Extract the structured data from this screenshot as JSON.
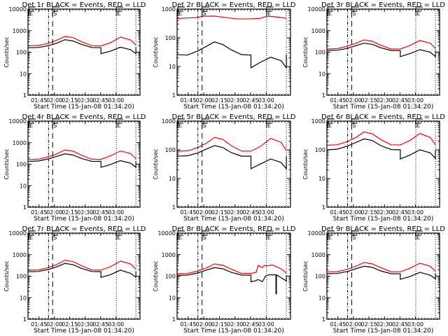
{
  "chart_data": [
    {
      "type": "line",
      "title": "Det 1r BLACK = Events, RED = LLD",
      "xlabel": "Start Time (15-Jan-08 01:34:20)",
      "ylabel": "Counts/sec",
      "yscale": "log",
      "ylim": [
        1,
        10000
      ],
      "yticks": [
        "1",
        "10",
        "100",
        "1000",
        "10000"
      ],
      "xlim_minutes_from_start": [
        0,
        109
      ],
      "xticks": [
        "01:45",
        "02:00",
        "02:15",
        "02:30",
        "02:45",
        "03:00"
      ],
      "markers": [
        {
          "label": "E",
          "t": 0
        },
        {
          "label": "S",
          "t": 24
        },
        {
          "label": "E",
          "t": 86
        }
      ],
      "vlines": {
        "dashdot": 20,
        "dashed": 24,
        "dotted": [
          86,
          105
        ]
      },
      "series": [
        {
          "name": "Events",
          "color": "#000000",
          "x": [
            0,
            10,
            20,
            28,
            36,
            44,
            52,
            62,
            71,
            71,
            80,
            90,
            100,
            105,
            105
          ],
          "y": [
            160,
            165,
            200,
            260,
            380,
            330,
            230,
            165,
            160,
            85,
            110,
            170,
            130,
            85,
            160
          ]
        },
        {
          "name": "LLD",
          "color": "#ff0000",
          "x": [
            0,
            10,
            20,
            28,
            36,
            44,
            52,
            62,
            71,
            80,
            90,
            100,
            105
          ],
          "y": [
            200,
            205,
            260,
            360,
            540,
            470,
            310,
            200,
            195,
            270,
            500,
            370,
            210
          ]
        }
      ]
    },
    {
      "type": "line",
      "title": "Det 2r BLACK = Events, RED = LLD",
      "xlabel": "Start Time (15-Jan-08 01:34:20)",
      "ylabel": "Counts/sec",
      "yscale": "log",
      "ylim": [
        1,
        1000
      ],
      "yticks": [
        "1",
        "10",
        "100",
        "1000"
      ],
      "xlim_minutes_from_start": [
        0,
        109
      ],
      "xticks": [
        "01:45",
        "02:00",
        "02:15",
        "02:30",
        "02:45",
        "03:00"
      ],
      "markers": [
        {
          "label": "E",
          "t": 0
        },
        {
          "label": "S",
          "t": 24
        },
        {
          "label": "E",
          "t": 86
        }
      ],
      "vlines": {
        "dashdot": 20,
        "dashed": 24,
        "dotted": [
          86,
          105
        ]
      },
      "series": [
        {
          "name": "Events",
          "color": "#000000",
          "x": [
            0,
            10,
            20,
            28,
            36,
            44,
            52,
            62,
            71,
            71,
            80,
            90,
            100,
            105,
            105
          ],
          "y": [
            26,
            25,
            35,
            50,
            72,
            58,
            38,
            26,
            25,
            9,
            14,
            21,
            16,
            9,
            26
          ]
        },
        {
          "name": "LLD",
          "color": "#ff0000",
          "x": [
            0,
            10,
            20,
            24,
            36,
            48,
            60,
            72,
            80,
            86,
            95,
            105
          ],
          "y": [
            470,
            490,
            510,
            560,
            570,
            500,
            450,
            460,
            480,
            560,
            540,
            480
          ]
        }
      ]
    },
    {
      "type": "line",
      "title": "Det 3r BLACK = Events, RED = LLD",
      "xlabel": "Start Time (15-Jan-08 01:34:20)",
      "ylabel": "Counts/sec",
      "yscale": "log",
      "ylim": [
        1,
        10000
      ],
      "yticks": [
        "1",
        "10",
        "100",
        "1000",
        "10000"
      ],
      "xlim_minutes_from_start": [
        0,
        109
      ],
      "xticks": [
        "01:45",
        "02:00",
        "02:15",
        "02:30",
        "02:45",
        "03:00"
      ],
      "markers": [
        {
          "label": "E",
          "t": 0
        },
        {
          "label": "S",
          "t": 24
        },
        {
          "label": "E",
          "t": 86
        }
      ],
      "vlines": {
        "dashdot": 20,
        "dashed": 24,
        "dotted": [
          86,
          105
        ]
      },
      "series": [
        {
          "name": "Events",
          "color": "#000000",
          "x": [
            0,
            10,
            20,
            28,
            36,
            44,
            52,
            62,
            71,
            71,
            80,
            90,
            100,
            105,
            105
          ],
          "y": [
            120,
            122,
            150,
            200,
            260,
            230,
            160,
            120,
            118,
            62,
            85,
            130,
            100,
            62,
            120
          ]
        },
        {
          "name": "LLD",
          "color": "#ff0000",
          "x": [
            0,
            10,
            20,
            28,
            36,
            44,
            52,
            62,
            71,
            80,
            90,
            100,
            105
          ],
          "y": [
            140,
            145,
            190,
            260,
            370,
            320,
            210,
            140,
            140,
            200,
            350,
            260,
            145
          ]
        }
      ]
    },
    {
      "type": "line",
      "title": "Det 4r BLACK = Events, RED = LLD",
      "xlabel": "Start Time (15-Jan-08 01:34:20)",
      "ylabel": "Counts/sec",
      "yscale": "log",
      "ylim": [
        1,
        10000
      ],
      "yticks": [
        "1",
        "10",
        "100",
        "1000",
        "10000"
      ],
      "xlim_minutes_from_start": [
        0,
        109
      ],
      "xticks": [
        "01:45",
        "02:00",
        "02:15",
        "02:30",
        "02:45",
        "03:00"
      ],
      "markers": [
        {
          "label": "E",
          "t": 0
        },
        {
          "label": "S",
          "t": 24
        },
        {
          "label": "E",
          "t": 86
        }
      ],
      "vlines": {
        "dashdot": 20,
        "dashed": 24,
        "dotted": [
          86,
          105
        ]
      },
      "series": [
        {
          "name": "Events",
          "color": "#000000",
          "x": [
            0,
            10,
            20,
            28,
            36,
            44,
            52,
            62,
            71,
            71,
            80,
            90,
            100,
            105,
            105
          ],
          "y": [
            135,
            140,
            175,
            230,
            300,
            265,
            185,
            135,
            135,
            72,
            95,
            145,
            110,
            72,
            135
          ]
        },
        {
          "name": "LLD",
          "color": "#ff0000",
          "x": [
            0,
            10,
            20,
            28,
            36,
            44,
            52,
            62,
            71,
            80,
            90,
            100,
            105
          ],
          "y": [
            165,
            170,
            220,
            300,
            460,
            400,
            260,
            170,
            168,
            240,
            410,
            310,
            175
          ]
        }
      ]
    },
    {
      "type": "line",
      "title": "Det 5r BLACK = Events, RED = LLD",
      "xlabel": "Start Time (15-Jan-08 01:34:20)",
      "ylabel": "Counts/sec",
      "yscale": "log",
      "ylim": [
        1,
        1000
      ],
      "yticks": [
        "1",
        "10",
        "100",
        "1000"
      ],
      "xlim_minutes_from_start": [
        0,
        109
      ],
      "xticks": [
        "01:45",
        "02:00",
        "02:15",
        "02:30",
        "02:45",
        "03:00"
      ],
      "markers": [
        {
          "label": "E",
          "t": 0
        },
        {
          "label": "S",
          "t": 24
        },
        {
          "label": "E",
          "t": 86
        }
      ],
      "vlines": {
        "dashdot": 20,
        "dashed": 24,
        "dotted": [
          86,
          105
        ]
      },
      "series": [
        {
          "name": "Events",
          "color": "#000000",
          "x": [
            0,
            10,
            20,
            28,
            36,
            44,
            52,
            62,
            71,
            71,
            80,
            90,
            100,
            105,
            105
          ],
          "y": [
            60,
            62,
            78,
            105,
            140,
            120,
            80,
            60,
            60,
            22,
            32,
            48,
            36,
            22,
            60
          ]
        },
        {
          "name": "LLD",
          "color": "#ff0000",
          "x": [
            0,
            10,
            20,
            28,
            36,
            44,
            52,
            62,
            71,
            80,
            90,
            100,
            105
          ],
          "y": [
            90,
            92,
            120,
            170,
            270,
            230,
            140,
            90,
            90,
            130,
            250,
            180,
            95
          ]
        }
      ]
    },
    {
      "type": "line",
      "title": "Det 6r BLACK = Events, RED = LLD",
      "xlabel": "Start Time (15-Jan-08 01:34:20)",
      "ylabel": "Counts/sec",
      "yscale": "log",
      "ylim": [
        1,
        1000
      ],
      "yticks": [
        "1",
        "10",
        "100",
        "1000"
      ],
      "xlim_minutes_from_start": [
        0,
        109
      ],
      "xticks": [
        "01:45",
        "02:00",
        "02:15",
        "02:30",
        "02:45",
        "03:00"
      ],
      "markers": [
        {
          "label": "E",
          "t": 0
        },
        {
          "label": "S",
          "t": 24
        },
        {
          "label": "E",
          "t": 86
        }
      ],
      "vlines": {
        "dashdot": 20,
        "dashed": 24,
        "dotted": [
          86,
          105
        ]
      },
      "series": [
        {
          "name": "Events",
          "color": "#000000",
          "x": [
            0,
            10,
            20,
            28,
            36,
            44,
            52,
            62,
            71,
            71,
            80,
            90,
            100,
            105,
            105
          ],
          "y": [
            100,
            105,
            135,
            180,
            240,
            210,
            140,
            102,
            100,
            48,
            65,
            100,
            78,
            50,
            100
          ]
        },
        {
          "name": "LLD",
          "color": "#ff0000",
          "x": [
            0,
            10,
            20,
            28,
            36,
            44,
            52,
            62,
            71,
            80,
            90,
            100,
            105
          ],
          "y": [
            145,
            150,
            195,
            270,
            420,
            360,
            230,
            150,
            148,
            210,
            370,
            270,
            150
          ]
        }
      ]
    },
    {
      "type": "line",
      "title": "Det 7r BLACK = Events, RED = LLD",
      "xlabel": "Start Time (15-Jan-08 01:34:20)",
      "ylabel": "Counts/sec",
      "yscale": "log",
      "ylim": [
        1,
        10000
      ],
      "yticks": [
        "1",
        "10",
        "100",
        "1000",
        "10000"
      ],
      "xlim_minutes_from_start": [
        0,
        109
      ],
      "xticks": [
        "01:45",
        "02:00",
        "02:15",
        "02:30",
        "02:45",
        "03:00"
      ],
      "markers": [
        {
          "label": "E",
          "t": 0
        },
        {
          "label": "S",
          "t": 24
        },
        {
          "label": "E",
          "t": 86
        }
      ],
      "vlines": {
        "dashdot": 20,
        "dashed": 24,
        "dotted": [
          86,
          105
        ]
      },
      "series": [
        {
          "name": "Events",
          "color": "#000000",
          "x": [
            0,
            10,
            20,
            28,
            36,
            44,
            52,
            62,
            71,
            71,
            80,
            90,
            100,
            105,
            105
          ],
          "y": [
            160,
            165,
            205,
            270,
            390,
            340,
            230,
            165,
            162,
            88,
            115,
            190,
            135,
            88,
            160
          ]
        },
        {
          "name": "LLD",
          "color": "#ff0000",
          "x": [
            0,
            10,
            20,
            28,
            36,
            44,
            52,
            62,
            71,
            80,
            90,
            100,
            105
          ],
          "y": [
            190,
            195,
            250,
            350,
            550,
            470,
            310,
            195,
            192,
            270,
            500,
            370,
            205
          ]
        }
      ]
    },
    {
      "type": "line",
      "title": "Det 8r BLACK = Events, RED = LLD",
      "xlabel": "Start Time (15-Jan-08 01:34:20)",
      "ylabel": "Counts/sec",
      "yscale": "log",
      "ylim": [
        1,
        10000
      ],
      "yticks": [
        "1",
        "10",
        "100",
        "1000",
        "10000"
      ],
      "xlim_minutes_from_start": [
        0,
        109
      ],
      "xticks": [
        "01:45",
        "02:00",
        "02:15",
        "02:30",
        "02:45",
        "03:00"
      ],
      "markers": [
        {
          "label": "E",
          "t": 0
        },
        {
          "label": "S",
          "t": 24
        },
        {
          "label": "E",
          "t": 86
        }
      ],
      "vlines": {
        "dashdot": 20,
        "dashed": 24,
        "dotted": [
          86,
          105
        ]
      },
      "series": [
        {
          "name": "Events",
          "color": "#000000",
          "x": [
            0,
            10,
            20,
            28,
            36,
            44,
            52,
            62,
            71,
            71,
            75,
            78,
            82,
            85,
            88,
            92,
            95,
            95,
            95.5,
            95.5,
            100,
            105,
            105
          ],
          "y": [
            110,
            112,
            140,
            190,
            250,
            220,
            150,
            112,
            110,
            55,
            60,
            70,
            55,
            100,
            115,
            115,
            115,
            15,
            15,
            115,
            85,
            60,
            110
          ]
        },
        {
          "name": "LLD",
          "color": "#ff0000",
          "x": [
            0,
            10,
            20,
            28,
            36,
            44,
            52,
            62,
            71,
            76,
            78,
            80,
            82,
            84,
            86,
            92,
            100,
            105
          ],
          "y": [
            130,
            133,
            175,
            240,
            370,
            320,
            210,
            135,
            135,
            150,
            320,
            280,
            250,
            320,
            300,
            330,
            220,
            140
          ]
        }
      ]
    },
    {
      "type": "line",
      "title": "Det 9r BLACK = Events, RED = LLD",
      "xlabel": "Start Time (15-Jan-08 01:34:20)",
      "ylabel": "Counts/sec",
      "yscale": "log",
      "ylim": [
        1,
        10000
      ],
      "yticks": [
        "1",
        "10",
        "100",
        "1000",
        "10000"
      ],
      "xlim_minutes_from_start": [
        0,
        109
      ],
      "xticks": [
        "01:45",
        "02:00",
        "02:15",
        "02:30",
        "02:45",
        "03:00"
      ],
      "markers": [
        {
          "label": "E",
          "t": 0
        },
        {
          "label": "S",
          "t": 24
        },
        {
          "label": "E",
          "t": 86
        }
      ],
      "vlines": {
        "dashdot": 20,
        "dashed": 24,
        "dotted": [
          86,
          105
        ]
      },
      "series": [
        {
          "name": "Events",
          "color": "#000000",
          "x": [
            0,
            10,
            20,
            28,
            36,
            44,
            52,
            62,
            71,
            71,
            80,
            90,
            100,
            105,
            105
          ],
          "y": [
            130,
            133,
            165,
            220,
            290,
            255,
            175,
            130,
            128,
            72,
            95,
            150,
            110,
            75,
            130
          ]
        },
        {
          "name": "LLD",
          "color": "#ff0000",
          "x": [
            0,
            10,
            20,
            28,
            36,
            44,
            52,
            62,
            71,
            80,
            90,
            100,
            105
          ],
          "y": [
            160,
            163,
            210,
            290,
            430,
            370,
            250,
            162,
            160,
            230,
            400,
            290,
            165
          ]
        }
      ]
    }
  ]
}
